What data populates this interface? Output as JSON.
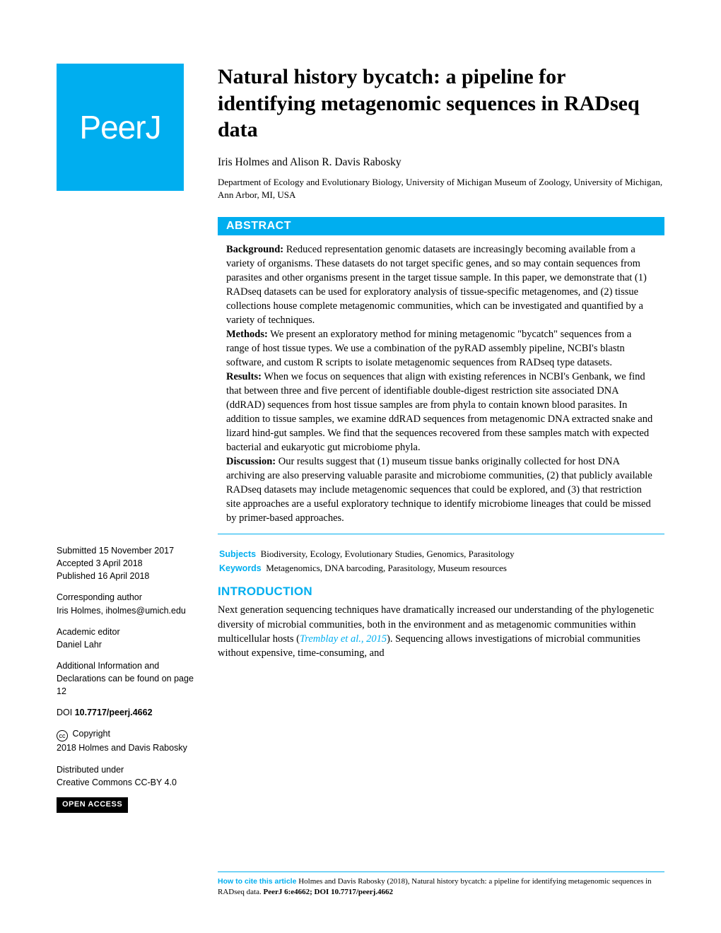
{
  "colors": {
    "accent": "#00aeef",
    "text": "#000000",
    "background": "#ffffff",
    "open_access_bg": "#000000",
    "open_access_fg": "#ffffff"
  },
  "typography": {
    "title_fontsize": 30,
    "body_fontsize": 14.5,
    "sidebar_fontsize": 12.5,
    "heading_font": "Arial",
    "body_font": "Georgia"
  },
  "logo": {
    "text": "PeerJ"
  },
  "title": "Natural history bycatch: a pipeline for identifying metagenomic sequences in RADseq data",
  "authors": "Iris Holmes and Alison R. Davis Rabosky",
  "affiliation": "Department of Ecology and Evolutionary Biology, University of Michigan Museum of Zoology, University of Michigan, Ann Arbor, MI, USA",
  "abstract": {
    "heading": "ABSTRACT",
    "background_label": "Background:",
    "background_text": " Reduced representation genomic datasets are increasingly becoming available from a variety of organisms. These datasets do not target specific genes, and so may contain sequences from parasites and other organisms present in the target tissue sample. In this paper, we demonstrate that (1) RADseq datasets can be used for exploratory analysis of tissue-specific metagenomes, and (2) tissue collections house complete metagenomic communities, which can be investigated and quantified by a variety of techniques.",
    "methods_label": "Methods:",
    "methods_text": " We present an exploratory method for mining metagenomic \"bycatch\" sequences from a range of host tissue types. We use a combination of the pyRAD assembly pipeline, NCBI's blastn software, and custom R scripts to isolate metagenomic sequences from RADseq type datasets.",
    "results_label": "Results:",
    "results_text": " When we focus on sequences that align with existing references in NCBI's Genbank, we find that between three and five percent of identifiable double-digest restriction site associated DNA (ddRAD) sequences from host tissue samples are from phyla to contain known blood parasites. In addition to tissue samples, we examine ddRAD sequences from metagenomic DNA extracted snake and lizard hind-gut samples. We find that the sequences recovered from these samples match with expected bacterial and eukaryotic gut microbiome phyla.",
    "discussion_label": "Discussion:",
    "discussion_text": " Our results suggest that (1) museum tissue banks originally collected for host DNA archiving are also preserving valuable parasite and microbiome communities, (2) that publicly available RADseq datasets may include metagenomic sequences that could be explored, and (3) that restriction site approaches are a useful exploratory technique to identify microbiome lineages that could be missed by primer-based approaches."
  },
  "subjects": {
    "label": "Subjects",
    "text": "Biodiversity, Ecology, Evolutionary Studies, Genomics, Parasitology"
  },
  "keywords": {
    "label": "Keywords",
    "text": "Metagenomics, DNA barcoding, Parasitology, Museum resources"
  },
  "introduction": {
    "heading": "INTRODUCTION",
    "text_before_ref": "Next generation sequencing techniques have dramatically increased our understanding of the phylogenetic diversity of microbial communities, both in the environment and as metagenomic communities within multicellular hosts (",
    "ref": "Tremblay et al., 2015",
    "text_after_ref": "). Sequencing allows investigations of microbial communities without expensive, time-consuming, and"
  },
  "sidebar": {
    "submitted_label": "Submitted",
    "submitted_date": "15 November 2017",
    "accepted_label": "Accepted",
    "accepted_date": "3 April 2018",
    "published_label": "Published",
    "published_date": "16 April 2018",
    "corresponding_label": "Corresponding author",
    "corresponding_text": "Iris Holmes, iholmes@umich.edu",
    "editor_label": "Academic editor",
    "editor_name": "Daniel Lahr",
    "additional_info": "Additional Information and Declarations can be found on page 12",
    "doi_label": "DOI",
    "doi_value": "10.7717/peerj.4662",
    "copyright_label": "Copyright",
    "copyright_text": "2018 Holmes and Davis Rabosky",
    "distributed_label": "Distributed under",
    "distributed_text": "Creative Commons CC-BY 4.0",
    "open_access": "OPEN ACCESS"
  },
  "footer": {
    "cite_label": "How to cite this article",
    "cite_text_1": " Holmes and Davis Rabosky (2018), Natural history bycatch: a pipeline for identifying metagenomic sequences in RADseq data. ",
    "cite_text_2": "PeerJ 6:e4662; DOI 10.7717/peerj.4662"
  }
}
